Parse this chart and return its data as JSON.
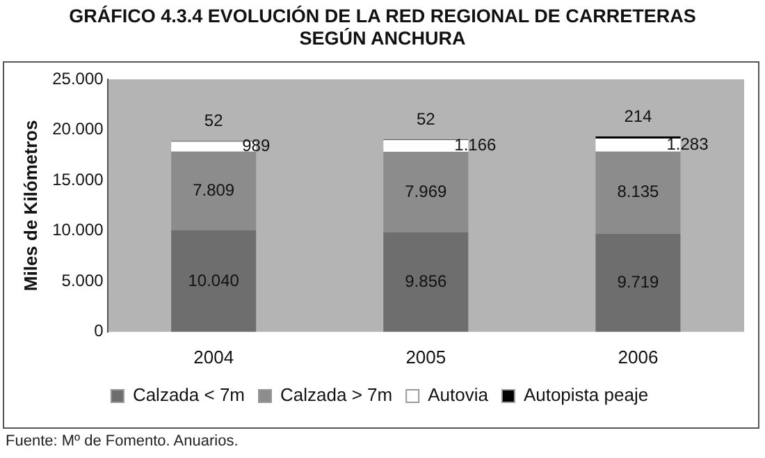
{
  "chart_data": {
    "type": "bar",
    "title": "GRÁFICO 4.3.4 EVOLUCIÓN DE LA RED REGIONAL DE CARRETERAS\nSEGÚN ANCHURA",
    "ylabel": "Miles de Kilómetros",
    "categories": [
      "2004",
      "2005",
      "2006"
    ],
    "stacked": true,
    "series": [
      {
        "name": "Calzada < 7m",
        "color": "#6e6e6e",
        "values": [
          10040,
          9856,
          9719
        ],
        "value_labels": [
          "10.040",
          "9.856",
          "9.719"
        ]
      },
      {
        "name": "Calzada > 7m",
        "color": "#8c8c8c",
        "values": [
          7809,
          7969,
          8135
        ],
        "value_labels": [
          "7.809",
          "7.969",
          "8.135"
        ]
      },
      {
        "name": "Autovia",
        "color": "#ffffff",
        "values": [
          989,
          1166,
          1283
        ],
        "value_labels": [
          "989",
          "1.166",
          "1.283"
        ]
      },
      {
        "name": "Autopista peaje",
        "color": "#000000",
        "values": [
          52,
          52,
          214
        ],
        "value_labels": [
          "52",
          "52",
          "214"
        ]
      }
    ],
    "ylim": [
      0,
      25000
    ],
    "yticks": [
      {
        "value": 0,
        "label": "0"
      },
      {
        "value": 5000,
        "label": "5.000"
      },
      {
        "value": 10000,
        "label": "10.000"
      },
      {
        "value": 15000,
        "label": "15.000"
      },
      {
        "value": 20000,
        "label": "20.000"
      },
      {
        "value": 25000,
        "label": "25.000"
      }
    ],
    "grid": false,
    "legend": "bottom",
    "annotations": [
      "Fuente: Mº de Fomento. Anuarios."
    ]
  }
}
